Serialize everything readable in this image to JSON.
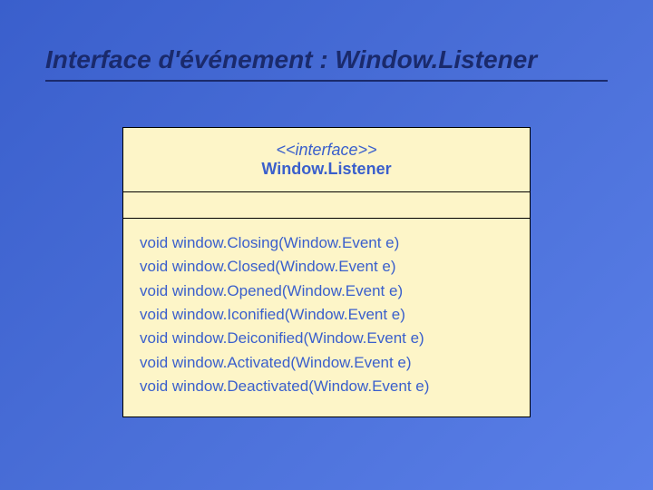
{
  "slide": {
    "title": "Interface d'événement : Window.Listener",
    "background_gradient": [
      "#3a5fcc",
      "#4a6fd8",
      "#5a7fe8"
    ],
    "title_color": "#1a2a6c",
    "title_fontsize_pt": 21,
    "title_font_style": "bold italic"
  },
  "uml": {
    "box_bg": "#fdf5c8",
    "box_border": "#000000",
    "text_color": "#3a5fcc",
    "stereotype": "<<interface>>",
    "interface_name": "Window.Listener",
    "header_fontsize_pt": 13,
    "methods_fontsize_pt": 13,
    "methods": [
      "void window.Closing(Window.Event e)",
      "void window.Closed(Window.Event e)",
      "void window.Opened(Window.Event e)",
      "void window.Iconified(Window.Event e)",
      "void window.Deiconified(Window.Event e)",
      "void window.Activated(Window.Event e)",
      "void window.Deactivated(Window.Event e)"
    ]
  }
}
